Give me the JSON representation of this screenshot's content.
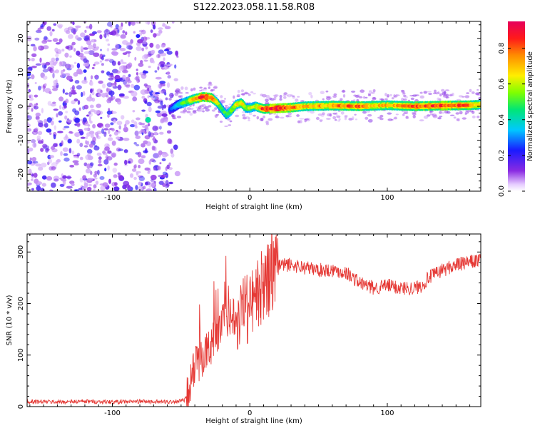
{
  "title": "S122.2023.058.11.58.R08",
  "colors": {
    "snr_line": "#e53935",
    "noise": "#7b2fe0",
    "axis": "#000000"
  },
  "colorbar": {
    "label": "Normalized spectral amplitude",
    "ticks": [
      "0.0",
      "0.2",
      "0.4",
      "0.6",
      "0.8"
    ],
    "tick_values": [
      0.0,
      0.2,
      0.4,
      0.6,
      0.8
    ],
    "range": [
      0,
      0.95
    ]
  },
  "chart_data": [
    {
      "type": "heatmap",
      "xlabel": "Height of straight line (km)",
      "ylabel": "Frequency (Hz)",
      "xlim": [
        -162,
        168
      ],
      "ylim": [
        -25,
        25
      ],
      "xticks": [
        "-100",
        "0",
        "100"
      ],
      "xtick_values": [
        -100,
        0,
        100
      ],
      "yticks": [
        "-20",
        "-10",
        "0",
        "10",
        "20"
      ],
      "ytick_values": [
        -20,
        -10,
        0,
        10,
        20
      ],
      "noise_region": [
        -162,
        -58
      ],
      "ridge": {
        "x": [
          -58,
          -52,
          -45,
          -40,
          -34,
          -28,
          -24,
          -20,
          -17,
          -14,
          -10,
          -6,
          -3,
          0,
          4,
          10,
          20,
          30,
          40,
          60,
          80,
          100,
          120,
          140,
          160,
          168
        ],
        "y": [
          -1,
          0.5,
          1.5,
          2.2,
          2.8,
          2.5,
          1.2,
          -1,
          -2.5,
          -1.5,
          0.5,
          1,
          -0.5,
          -0.5,
          0,
          -0.8,
          -0.6,
          -0.4,
          0,
          0.2,
          0,
          0.3,
          0,
          0.2,
          0.3,
          0.5
        ],
        "amplitude": [
          0.25,
          0.4,
          0.6,
          0.7,
          0.9,
          0.85,
          0.6,
          0.45,
          0.5,
          0.55,
          0.6,
          0.7,
          0.6,
          0.55,
          0.6,
          0.85,
          0.95,
          0.8,
          0.7,
          0.75,
          0.8,
          0.7,
          0.8,
          0.85,
          0.8,
          0.7
        ]
      }
    },
    {
      "type": "line",
      "xlabel": "Height of straight line (km)",
      "ylabel": "SNR (10 * v/v)",
      "xlim": [
        -162,
        168
      ],
      "ylim": [
        0,
        335
      ],
      "xticks": [
        "-100",
        "0",
        "100"
      ],
      "xtick_values": [
        -100,
        0,
        100
      ],
      "yticks": [
        "0",
        "100",
        "200",
        "300"
      ],
      "ytick_values": [
        0,
        100,
        200,
        300
      ],
      "series": [
        {
          "x": [
            -162,
            -140,
            -120,
            -100,
            -80,
            -60,
            -48,
            -45,
            -42,
            -40,
            -38,
            -35,
            -30,
            -25,
            -20,
            -15,
            -10,
            -5,
            -2,
            0,
            5,
            10,
            15,
            20,
            25,
            30,
            40,
            50,
            60,
            70,
            80,
            90,
            100,
            110,
            120,
            125,
            130,
            140,
            150,
            160,
            168
          ],
          "y": [
            10,
            9,
            10,
            9,
            10,
            9,
            12,
            20,
            60,
            75,
            85,
            95,
            110,
            140,
            160,
            175,
            180,
            195,
            190,
            200,
            215,
            235,
            250,
            265,
            275,
            275,
            270,
            265,
            265,
            260,
            240,
            230,
            235,
            230,
            230,
            235,
            250,
            265,
            275,
            280,
            285
          ]
        }
      ]
    }
  ]
}
